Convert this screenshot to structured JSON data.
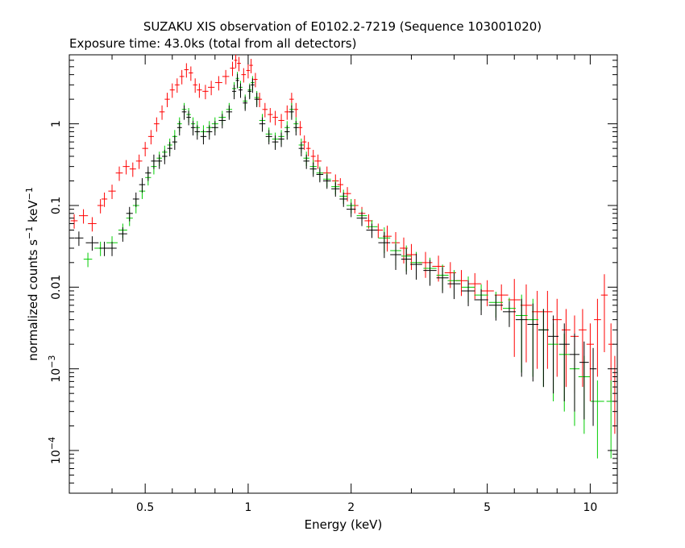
{
  "chart_data": {
    "type": "scatter",
    "title": "SUZAKU XIS observation of E0102.2-7219 (Sequence 103001020)",
    "subtitle": "Exposure time: 43.0ks (total from all detectors)",
    "xlabel": "Energy (keV)",
    "ylabel_main": "normalized counts s",
    "ylabel_sup1": "−1",
    "ylabel_mid": " keV",
    "ylabel_sup2": "−1",
    "x_scale": "log",
    "y_scale": "log",
    "xlim": [
      0.3,
      12
    ],
    "ylim": [
      3e-05,
      7
    ],
    "x_ticks": [
      {
        "value": 0.5,
        "label": "0.5"
      },
      {
        "value": 1,
        "label": "1"
      },
      {
        "value": 2,
        "label": "2"
      },
      {
        "value": 5,
        "label": "5"
      },
      {
        "value": 10,
        "label": "10"
      }
    ],
    "y_ticks": [
      {
        "value": 1,
        "label": "1",
        "sup": ""
      },
      {
        "value": 0.1,
        "label": "0.1",
        "sup": ""
      },
      {
        "value": 0.01,
        "label": "0.01",
        "sup": ""
      },
      {
        "value": 0.001,
        "label": "10",
        "sup": "−3"
      },
      {
        "value": 0.0001,
        "label": "10",
        "sup": "−4"
      }
    ],
    "grid": false,
    "legend": "none",
    "series": [
      {
        "color": "#ff0000",
        "points": [
          [
            0.31,
            0.065
          ],
          [
            0.33,
            0.075
          ],
          [
            0.35,
            0.06
          ],
          [
            0.37,
            0.1
          ],
          [
            0.38,
            0.12
          ],
          [
            0.4,
            0.15
          ],
          [
            0.42,
            0.25
          ],
          [
            0.44,
            0.3
          ],
          [
            0.46,
            0.28
          ],
          [
            0.48,
            0.35
          ],
          [
            0.5,
            0.5
          ],
          [
            0.52,
            0.7
          ],
          [
            0.54,
            1.0
          ],
          [
            0.56,
            1.4
          ],
          [
            0.58,
            2.0
          ],
          [
            0.6,
            2.6
          ],
          [
            0.62,
            3.0
          ],
          [
            0.64,
            3.8
          ],
          [
            0.66,
            4.6
          ],
          [
            0.68,
            4.2
          ],
          [
            0.7,
            3.0
          ],
          [
            0.72,
            2.6
          ],
          [
            0.75,
            2.5
          ],
          [
            0.78,
            2.8
          ],
          [
            0.82,
            3.2
          ],
          [
            0.86,
            3.8
          ],
          [
            0.9,
            4.8
          ],
          [
            0.92,
            6.0
          ],
          [
            0.94,
            5.5
          ],
          [
            0.97,
            4.0
          ],
          [
            1.0,
            4.5
          ],
          [
            1.02,
            5.2
          ],
          [
            1.05,
            3.5
          ],
          [
            1.08,
            2.0
          ],
          [
            1.12,
            1.5
          ],
          [
            1.16,
            1.3
          ],
          [
            1.2,
            1.2
          ],
          [
            1.25,
            1.1
          ],
          [
            1.3,
            1.4
          ],
          [
            1.34,
            2.0
          ],
          [
            1.38,
            1.5
          ],
          [
            1.42,
            0.9
          ],
          [
            1.46,
            0.6
          ],
          [
            1.5,
            0.5
          ],
          [
            1.55,
            0.4
          ],
          [
            1.6,
            0.35
          ],
          [
            1.7,
            0.25
          ],
          [
            1.8,
            0.2
          ],
          [
            1.86,
            0.18
          ],
          [
            1.95,
            0.14
          ],
          [
            2.05,
            0.1
          ],
          [
            2.15,
            0.08
          ],
          [
            2.25,
            0.065
          ],
          [
            2.4,
            0.05
          ],
          [
            2.55,
            0.042
          ],
          [
            2.7,
            0.035
          ],
          [
            2.85,
            0.03
          ],
          [
            3.0,
            0.025
          ],
          [
            3.3,
            0.02
          ],
          [
            3.6,
            0.018
          ],
          [
            3.9,
            0.015
          ],
          [
            4.2,
            0.012
          ],
          [
            4.6,
            0.011
          ],
          [
            5.0,
            0.009
          ],
          [
            5.5,
            0.008
          ],
          [
            6.0,
            0.007
          ],
          [
            6.5,
            0.006
          ],
          [
            7.0,
            0.005
          ],
          [
            7.5,
            0.005
          ],
          [
            8.0,
            0.004
          ],
          [
            8.5,
            0.003
          ],
          [
            9.0,
            0.0025
          ],
          [
            9.5,
            0.003
          ],
          [
            10.0,
            0.002
          ],
          [
            10.5,
            0.004
          ],
          [
            11.0,
            0.008
          ],
          [
            11.5,
            0.002
          ],
          [
            11.8,
            0.0008
          ]
        ]
      },
      {
        "color": "#000000",
        "points": [
          [
            0.32,
            0.04
          ],
          [
            0.35,
            0.035
          ],
          [
            0.38,
            0.03
          ],
          [
            0.4,
            0.03
          ],
          [
            0.43,
            0.045
          ],
          [
            0.45,
            0.08
          ],
          [
            0.47,
            0.12
          ],
          [
            0.49,
            0.18
          ],
          [
            0.51,
            0.25
          ],
          [
            0.53,
            0.35
          ],
          [
            0.55,
            0.35
          ],
          [
            0.57,
            0.4
          ],
          [
            0.59,
            0.5
          ],
          [
            0.61,
            0.6
          ],
          [
            0.63,
            0.9
          ],
          [
            0.65,
            1.4
          ],
          [
            0.67,
            1.2
          ],
          [
            0.69,
            0.9
          ],
          [
            0.71,
            0.8
          ],
          [
            0.74,
            0.7
          ],
          [
            0.77,
            0.8
          ],
          [
            0.8,
            0.9
          ],
          [
            0.84,
            1.1
          ],
          [
            0.88,
            1.4
          ],
          [
            0.91,
            2.5
          ],
          [
            0.93,
            3.4
          ],
          [
            0.95,
            2.6
          ],
          [
            0.98,
            1.8
          ],
          [
            1.01,
            2.5
          ],
          [
            1.03,
            3.0
          ],
          [
            1.06,
            2.0
          ],
          [
            1.1,
            1.0
          ],
          [
            1.15,
            0.7
          ],
          [
            1.2,
            0.6
          ],
          [
            1.25,
            0.65
          ],
          [
            1.3,
            0.8
          ],
          [
            1.34,
            1.4
          ],
          [
            1.38,
            0.9
          ],
          [
            1.43,
            0.5
          ],
          [
            1.48,
            0.35
          ],
          [
            1.55,
            0.28
          ],
          [
            1.62,
            0.24
          ],
          [
            1.7,
            0.2
          ],
          [
            1.8,
            0.16
          ],
          [
            1.9,
            0.12
          ],
          [
            2.0,
            0.09
          ],
          [
            2.15,
            0.07
          ],
          [
            2.3,
            0.05
          ],
          [
            2.5,
            0.035
          ],
          [
            2.7,
            0.025
          ],
          [
            2.9,
            0.022
          ],
          [
            3.1,
            0.019
          ],
          [
            3.4,
            0.016
          ],
          [
            3.7,
            0.013
          ],
          [
            4.0,
            0.011
          ],
          [
            4.4,
            0.009
          ],
          [
            4.8,
            0.007
          ],
          [
            5.3,
            0.006
          ],
          [
            5.8,
            0.005
          ],
          [
            6.3,
            0.004
          ],
          [
            6.8,
            0.0035
          ],
          [
            7.3,
            0.003
          ],
          [
            7.8,
            0.0025
          ],
          [
            8.4,
            0.002
          ],
          [
            9.0,
            0.0015
          ],
          [
            9.6,
            0.0012
          ],
          [
            10.2,
            0.001
          ]
        ]
      },
      {
        "color": "#00cc00",
        "points": [
          [
            0.34,
            0.022
          ],
          [
            0.37,
            0.03
          ],
          [
            0.4,
            0.035
          ],
          [
            0.43,
            0.05
          ],
          [
            0.45,
            0.07
          ],
          [
            0.47,
            0.1
          ],
          [
            0.49,
            0.15
          ],
          [
            0.51,
            0.22
          ],
          [
            0.53,
            0.3
          ],
          [
            0.55,
            0.38
          ],
          [
            0.57,
            0.45
          ],
          [
            0.59,
            0.55
          ],
          [
            0.61,
            0.7
          ],
          [
            0.63,
            1.0
          ],
          [
            0.65,
            1.5
          ],
          [
            0.67,
            1.3
          ],
          [
            0.69,
            1.0
          ],
          [
            0.71,
            0.9
          ],
          [
            0.74,
            0.8
          ],
          [
            0.77,
            0.9
          ],
          [
            0.8,
            1.0
          ],
          [
            0.84,
            1.2
          ],
          [
            0.88,
            1.5
          ],
          [
            0.91,
            2.7
          ],
          [
            0.93,
            3.6
          ],
          [
            0.95,
            2.8
          ],
          [
            0.98,
            1.9
          ],
          [
            1.01,
            2.6
          ],
          [
            1.03,
            3.2
          ],
          [
            1.06,
            2.1
          ],
          [
            1.1,
            1.1
          ],
          [
            1.15,
            0.75
          ],
          [
            1.2,
            0.65
          ],
          [
            1.25,
            0.7
          ],
          [
            1.3,
            0.9
          ],
          [
            1.34,
            1.5
          ],
          [
            1.38,
            1.0
          ],
          [
            1.43,
            0.55
          ],
          [
            1.48,
            0.38
          ],
          [
            1.55,
            0.3
          ],
          [
            1.62,
            0.25
          ],
          [
            1.7,
            0.21
          ],
          [
            1.8,
            0.17
          ],
          [
            1.9,
            0.13
          ],
          [
            2.0,
            0.1
          ],
          [
            2.15,
            0.075
          ],
          [
            2.3,
            0.055
          ],
          [
            2.5,
            0.04
          ],
          [
            2.7,
            0.028
          ],
          [
            2.9,
            0.024
          ],
          [
            3.1,
            0.02
          ],
          [
            3.4,
            0.017
          ],
          [
            3.7,
            0.014
          ],
          [
            4.0,
            0.012
          ],
          [
            4.4,
            0.01
          ],
          [
            4.8,
            0.008
          ],
          [
            5.3,
            0.0065
          ],
          [
            5.8,
            0.0055
          ],
          [
            6.3,
            0.0045
          ],
          [
            6.8,
            0.004
          ],
          [
            7.3,
            0.003
          ],
          [
            7.8,
            0.002
          ],
          [
            8.4,
            0.0015
          ],
          [
            9.0,
            0.001
          ],
          [
            9.6,
            0.0008
          ],
          [
            10.5,
            0.0004
          ],
          [
            11.5,
            0.0004
          ]
        ]
      }
    ]
  }
}
